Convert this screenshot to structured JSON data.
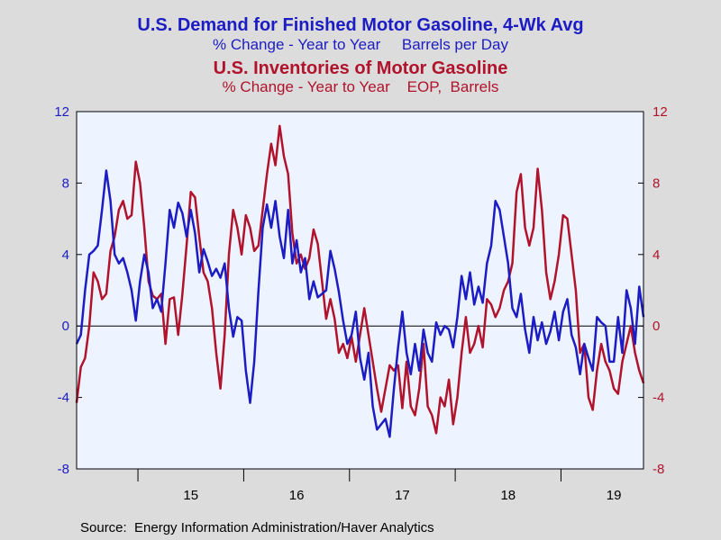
{
  "titles": {
    "demand_title": "U.S. Demand for Finished Motor Gasoline, 4-Wk Avg",
    "demand_subtitle": "% Change - Year to Year     Barrels per Day",
    "inventory_title": "U.S. Inventories of Motor Gasoline",
    "inventory_subtitle": "% Change - Year to Year    EOP,  Barrels"
  },
  "source": "Source:  Energy Information Administration/Haver Analytics",
  "colors": {
    "demand": "#1c1cc4",
    "inventory": "#b0132b",
    "plot_background": "#eef4ff",
    "frame_background": "#dcdcdc"
  },
  "chart_data": {
    "type": "line",
    "x_unit": "year",
    "xlim": [
      2014.42,
      2019.78
    ],
    "x_ticks": [
      "15",
      "16",
      "17",
      "18",
      "19"
    ],
    "x_tick_positions": [
      2015.5,
      2016.5,
      2017.5,
      2018.5,
      2019.5
    ],
    "left_axis": {
      "ylim": [
        -8,
        12
      ],
      "ticks": [
        "-8",
        "-4",
        "0",
        "4",
        "8",
        "12"
      ]
    },
    "right_axis": {
      "ylim": [
        -8,
        12
      ],
      "ticks": [
        "-8",
        "-4",
        "0",
        "4",
        "8",
        "12"
      ]
    },
    "grid": false,
    "zero_line": true,
    "series": [
      {
        "name": "U.S. Demand for Finished Motor Gasoline, 4-Wk Avg",
        "axis": "left",
        "points": [
          [
            2014.42,
            -1.0
          ],
          [
            2014.46,
            -0.5
          ],
          [
            2014.5,
            2.0
          ],
          [
            2014.54,
            4.0
          ],
          [
            2014.58,
            4.2
          ],
          [
            2014.62,
            4.5
          ],
          [
            2014.66,
            6.5
          ],
          [
            2014.7,
            8.7
          ],
          [
            2014.74,
            7.0
          ],
          [
            2014.78,
            4.0
          ],
          [
            2014.82,
            3.5
          ],
          [
            2014.86,
            3.8
          ],
          [
            2014.9,
            3.0
          ],
          [
            2014.94,
            2.0
          ],
          [
            2014.98,
            0.3
          ],
          [
            2015.02,
            2.5
          ],
          [
            2015.06,
            4.0
          ],
          [
            2015.1,
            3.0
          ],
          [
            2015.14,
            1.0
          ],
          [
            2015.18,
            1.5
          ],
          [
            2015.22,
            0.8
          ],
          [
            2015.26,
            3.5
          ],
          [
            2015.3,
            6.5
          ],
          [
            2015.34,
            5.5
          ],
          [
            2015.38,
            6.9
          ],
          [
            2015.42,
            6.3
          ],
          [
            2015.46,
            5.0
          ],
          [
            2015.5,
            6.5
          ],
          [
            2015.54,
            5.2
          ],
          [
            2015.58,
            3.0
          ],
          [
            2015.62,
            4.3
          ],
          [
            2015.66,
            3.6
          ],
          [
            2015.7,
            2.8
          ],
          [
            2015.74,
            3.2
          ],
          [
            2015.78,
            2.7
          ],
          [
            2015.82,
            3.5
          ],
          [
            2015.86,
            1.0
          ],
          [
            2015.9,
            -0.6
          ],
          [
            2015.94,
            0.5
          ],
          [
            2015.98,
            0.3
          ],
          [
            2016.02,
            -2.5
          ],
          [
            2016.06,
            -4.3
          ],
          [
            2016.1,
            -2.0
          ],
          [
            2016.14,
            2.0
          ],
          [
            2016.18,
            5.5
          ],
          [
            2016.22,
            6.8
          ],
          [
            2016.26,
            5.5
          ],
          [
            2016.3,
            7.0
          ],
          [
            2016.34,
            5.0
          ],
          [
            2016.38,
            3.8
          ],
          [
            2016.42,
            6.5
          ],
          [
            2016.46,
            3.5
          ],
          [
            2016.5,
            4.8
          ],
          [
            2016.54,
            3.0
          ],
          [
            2016.58,
            3.8
          ],
          [
            2016.62,
            1.5
          ],
          [
            2016.66,
            2.5
          ],
          [
            2016.7,
            1.6
          ],
          [
            2016.74,
            1.8
          ],
          [
            2016.78,
            2.0
          ],
          [
            2016.82,
            4.2
          ],
          [
            2016.86,
            3.2
          ],
          [
            2016.9,
            1.9
          ],
          [
            2016.94,
            0.3
          ],
          [
            2016.98,
            -1.0
          ],
          [
            2017.02,
            -0.5
          ],
          [
            2017.06,
            0.8
          ],
          [
            2017.1,
            -1.8
          ],
          [
            2017.14,
            -3.0
          ],
          [
            2017.18,
            -1.5
          ],
          [
            2017.22,
            -4.5
          ],
          [
            2017.26,
            -5.8
          ],
          [
            2017.3,
            -5.5
          ],
          [
            2017.34,
            -5.2
          ],
          [
            2017.38,
            -6.2
          ],
          [
            2017.42,
            -3.5
          ],
          [
            2017.46,
            -1.2
          ],
          [
            2017.5,
            0.8
          ],
          [
            2017.54,
            -1.5
          ],
          [
            2017.58,
            -2.7
          ],
          [
            2017.62,
            -1.0
          ],
          [
            2017.66,
            -2.5
          ],
          [
            2017.7,
            -0.2
          ],
          [
            2017.74,
            -1.5
          ],
          [
            2017.78,
            -2.0
          ],
          [
            2017.82,
            0.2
          ],
          [
            2017.86,
            -0.5
          ],
          [
            2017.9,
            0.0
          ],
          [
            2017.94,
            -0.2
          ],
          [
            2017.98,
            -1.2
          ],
          [
            2018.02,
            0.5
          ],
          [
            2018.06,
            2.8
          ],
          [
            2018.1,
            1.5
          ],
          [
            2018.14,
            3.0
          ],
          [
            2018.18,
            1.2
          ],
          [
            2018.22,
            2.2
          ],
          [
            2018.26,
            1.3
          ],
          [
            2018.3,
            3.5
          ],
          [
            2018.34,
            4.5
          ],
          [
            2018.38,
            7.0
          ],
          [
            2018.42,
            6.5
          ],
          [
            2018.46,
            5.0
          ],
          [
            2018.5,
            3.5
          ],
          [
            2018.54,
            1.0
          ],
          [
            2018.58,
            0.5
          ],
          [
            2018.62,
            1.8
          ],
          [
            2018.66,
            -0.2
          ],
          [
            2018.7,
            -1.5
          ],
          [
            2018.74,
            0.5
          ],
          [
            2018.78,
            -0.8
          ],
          [
            2018.82,
            0.2
          ],
          [
            2018.86,
            -1.0
          ],
          [
            2018.9,
            -0.3
          ],
          [
            2018.94,
            0.8
          ],
          [
            2018.98,
            -0.8
          ],
          [
            2019.02,
            0.8
          ],
          [
            2019.06,
            1.5
          ],
          [
            2019.1,
            -0.5
          ],
          [
            2019.14,
            -1.2
          ],
          [
            2019.18,
            -2.7
          ],
          [
            2019.22,
            -1.0
          ],
          [
            2019.26,
            -1.8
          ],
          [
            2019.3,
            -2.5
          ],
          [
            2019.34,
            0.5
          ],
          [
            2019.38,
            0.2
          ],
          [
            2019.42,
            0.0
          ],
          [
            2019.46,
            -2.0
          ],
          [
            2019.5,
            -2.0
          ],
          [
            2019.54,
            0.5
          ],
          [
            2019.58,
            -1.5
          ],
          [
            2019.62,
            2.0
          ],
          [
            2019.66,
            1.0
          ],
          [
            2019.7,
            -1.0
          ],
          [
            2019.74,
            2.2
          ],
          [
            2019.78,
            0.5
          ]
        ]
      },
      {
        "name": "U.S. Inventories of Motor Gasoline",
        "axis": "right",
        "points": [
          [
            2014.42,
            -4.3
          ],
          [
            2014.46,
            -2.3
          ],
          [
            2014.5,
            -1.8
          ],
          [
            2014.54,
            0.0
          ],
          [
            2014.58,
            3.0
          ],
          [
            2014.62,
            2.5
          ],
          [
            2014.66,
            1.5
          ],
          [
            2014.7,
            1.8
          ],
          [
            2014.74,
            4.2
          ],
          [
            2014.78,
            5.0
          ],
          [
            2014.82,
            6.5
          ],
          [
            2014.86,
            7.0
          ],
          [
            2014.9,
            6.0
          ],
          [
            2014.94,
            6.2
          ],
          [
            2014.98,
            9.2
          ],
          [
            2015.02,
            8.0
          ],
          [
            2015.06,
            5.5
          ],
          [
            2015.1,
            2.5
          ],
          [
            2015.14,
            1.7
          ],
          [
            2015.18,
            1.5
          ],
          [
            2015.22,
            1.8
          ],
          [
            2015.26,
            -1.0
          ],
          [
            2015.3,
            1.5
          ],
          [
            2015.34,
            1.6
          ],
          [
            2015.38,
            -0.5
          ],
          [
            2015.42,
            1.8
          ],
          [
            2015.46,
            4.5
          ],
          [
            2015.5,
            7.5
          ],
          [
            2015.54,
            7.2
          ],
          [
            2015.58,
            5.0
          ],
          [
            2015.62,
            3.0
          ],
          [
            2015.66,
            2.5
          ],
          [
            2015.7,
            1.0
          ],
          [
            2015.74,
            -1.5
          ],
          [
            2015.78,
            -3.5
          ],
          [
            2015.82,
            -0.5
          ],
          [
            2015.86,
            4.0
          ],
          [
            2015.9,
            6.5
          ],
          [
            2015.94,
            5.5
          ],
          [
            2015.98,
            4.0
          ],
          [
            2016.02,
            6.2
          ],
          [
            2016.06,
            5.5
          ],
          [
            2016.1,
            4.2
          ],
          [
            2016.14,
            4.5
          ],
          [
            2016.18,
            6.5
          ],
          [
            2016.22,
            8.5
          ],
          [
            2016.26,
            10.2
          ],
          [
            2016.3,
            9.0
          ],
          [
            2016.34,
            11.2
          ],
          [
            2016.38,
            9.5
          ],
          [
            2016.42,
            8.5
          ],
          [
            2016.46,
            5.2
          ],
          [
            2016.5,
            3.5
          ],
          [
            2016.54,
            4.0
          ],
          [
            2016.58,
            3.2
          ],
          [
            2016.62,
            3.8
          ],
          [
            2016.66,
            5.4
          ],
          [
            2016.7,
            4.6
          ],
          [
            2016.74,
            2.5
          ],
          [
            2016.78,
            0.4
          ],
          [
            2016.82,
            1.5
          ],
          [
            2016.86,
            0.4
          ],
          [
            2016.9,
            -1.5
          ],
          [
            2016.94,
            -1.0
          ],
          [
            2016.98,
            -1.8
          ],
          [
            2017.02,
            -0.6
          ],
          [
            2017.06,
            -2.0
          ],
          [
            2017.1,
            -0.5
          ],
          [
            2017.14,
            1.0
          ],
          [
            2017.18,
            -0.5
          ],
          [
            2017.22,
            -2.0
          ],
          [
            2017.26,
            -3.5
          ],
          [
            2017.3,
            -4.8
          ],
          [
            2017.34,
            -3.5
          ],
          [
            2017.38,
            -2.2
          ],
          [
            2017.42,
            -2.5
          ],
          [
            2017.46,
            -2.2
          ],
          [
            2017.5,
            -4.6
          ],
          [
            2017.54,
            -2.0
          ],
          [
            2017.58,
            -4.5
          ],
          [
            2017.62,
            -5.0
          ],
          [
            2017.66,
            -3.5
          ],
          [
            2017.7,
            -1.0
          ],
          [
            2017.74,
            -4.5
          ],
          [
            2017.78,
            -5.0
          ],
          [
            2017.82,
            -6.0
          ],
          [
            2017.86,
            -4.0
          ],
          [
            2017.9,
            -4.5
          ],
          [
            2017.94,
            -3.0
          ],
          [
            2017.98,
            -5.5
          ],
          [
            2018.02,
            -4.0
          ],
          [
            2018.06,
            -1.5
          ],
          [
            2018.1,
            0.5
          ],
          [
            2018.14,
            -1.5
          ],
          [
            2018.18,
            -1.0
          ],
          [
            2018.22,
            0.0
          ],
          [
            2018.26,
            -1.2
          ],
          [
            2018.3,
            1.5
          ],
          [
            2018.34,
            1.2
          ],
          [
            2018.38,
            0.5
          ],
          [
            2018.42,
            1.0
          ],
          [
            2018.46,
            2.0
          ],
          [
            2018.5,
            2.5
          ],
          [
            2018.54,
            3.5
          ],
          [
            2018.58,
            7.5
          ],
          [
            2018.62,
            8.5
          ],
          [
            2018.66,
            5.5
          ],
          [
            2018.7,
            4.5
          ],
          [
            2018.74,
            5.5
          ],
          [
            2018.78,
            8.8
          ],
          [
            2018.82,
            6.5
          ],
          [
            2018.86,
            3.0
          ],
          [
            2018.9,
            1.5
          ],
          [
            2018.94,
            2.5
          ],
          [
            2018.98,
            4.0
          ],
          [
            2019.02,
            6.2
          ],
          [
            2019.06,
            6.0
          ],
          [
            2019.1,
            4.0
          ],
          [
            2019.14,
            2.0
          ],
          [
            2019.18,
            -1.5
          ],
          [
            2019.22,
            -1.0
          ],
          [
            2019.26,
            -4.0
          ],
          [
            2019.3,
            -4.7
          ],
          [
            2019.34,
            -2.5
          ],
          [
            2019.38,
            -1.0
          ],
          [
            2019.42,
            -2.0
          ],
          [
            2019.46,
            -2.5
          ],
          [
            2019.5,
            -3.5
          ],
          [
            2019.54,
            -3.8
          ],
          [
            2019.58,
            -2.0
          ],
          [
            2019.62,
            -1.0
          ],
          [
            2019.66,
            0.0
          ],
          [
            2019.7,
            -1.5
          ],
          [
            2019.74,
            -2.5
          ],
          [
            2019.78,
            -3.2
          ]
        ]
      }
    ]
  }
}
